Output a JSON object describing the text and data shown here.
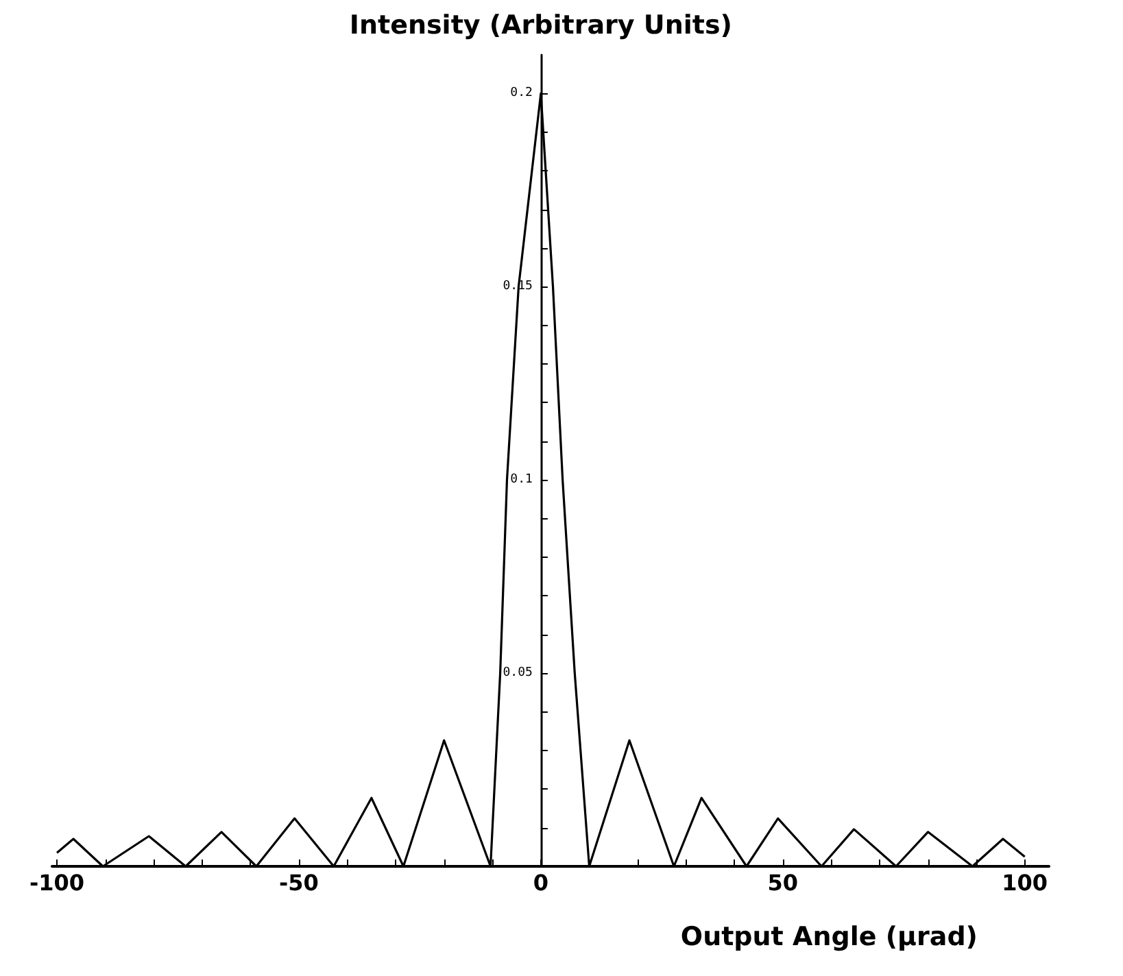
{
  "chart_data": {
    "type": "line",
    "ylabel": "Intensity (Arbitrary Units)",
    "xlabel": "Output Angle (µrad)",
    "xlim": [
      -101,
      105
    ],
    "ylim": [
      0,
      0.21
    ],
    "xticks": [
      -100,
      {
        "value": -90,
        "label": null
      },
      {
        "value": -80,
        "label": null
      },
      {
        "value": -70,
        "label": null
      },
      {
        "value": -60,
        "label": null
      },
      -50,
      {
        "value": -40,
        "label": null
      },
      {
        "value": -30,
        "label": null
      },
      {
        "value": -20,
        "label": null
      },
      {
        "value": -10,
        "label": null
      },
      0,
      {
        "value": 10,
        "label": null
      },
      {
        "value": 20,
        "label": null
      },
      {
        "value": 30,
        "label": null
      },
      {
        "value": 40,
        "label": null
      },
      50,
      {
        "value": 60,
        "label": null
      },
      {
        "value": 70,
        "label": null
      },
      {
        "value": 80,
        "label": null
      },
      {
        "value": 90,
        "label": null
      },
      100
    ],
    "yticks": [
      {
        "value": 0.01,
        "label": null
      },
      {
        "value": 0.02,
        "label": null
      },
      {
        "value": 0.03,
        "label": null
      },
      {
        "value": 0.04,
        "label": null
      },
      0.05,
      {
        "value": 0.06,
        "label": null
      },
      {
        "value": 0.07,
        "label": null
      },
      {
        "value": 0.08,
        "label": null
      },
      {
        "value": 0.09,
        "label": null
      },
      0.1,
      {
        "value": 0.11,
        "label": null
      },
      {
        "value": 0.12,
        "label": null
      },
      {
        "value": 0.13,
        "label": null
      },
      {
        "value": 0.14,
        "label": null
      },
      0.15,
      {
        "value": 0.16,
        "label": null
      },
      {
        "value": 0.17,
        "label": null
      },
      {
        "value": 0.18,
        "label": null
      },
      {
        "value": 0.19,
        "label": null
      },
      0.2
    ],
    "grid": false,
    "marker": "none",
    "line_style": "solid",
    "series": [
      {
        "color": "#000000",
        "x": [
          -100,
          -96.6,
          -90.5,
          -81,
          -73.4,
          -66,
          -58.8,
          -50.9,
          -42.8,
          -35,
          -28.4,
          -20,
          -10.4,
          -8.4,
          -7,
          -4.6,
          0,
          2.5,
          4.5,
          7,
          10,
          18.3,
          27.5,
          33.2,
          42.5,
          49,
          58,
          64.7,
          73.4,
          80,
          89.2,
          95.5,
          100
        ],
        "values": [
          0.0035,
          0.0071,
          0,
          0.0078,
          0,
          0.0089,
          0,
          0.0124,
          0,
          0.0177,
          0,
          0.0326,
          0,
          0.05,
          0.1,
          0.15,
          0.2,
          0.15,
          0.1,
          0.05,
          0,
          0.0326,
          0,
          0.0177,
          0,
          0.0124,
          0,
          0.0096,
          0,
          0.0089,
          0,
          0.0071,
          0.0025
        ]
      }
    ]
  }
}
